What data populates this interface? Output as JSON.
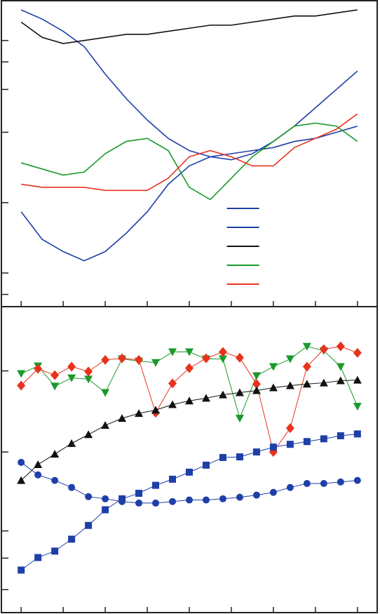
{
  "chart_data": [
    {
      "type": "line",
      "legend": "lower right",
      "xlim": [
        -0.47,
        8.47
      ],
      "xticks": [
        0,
        1,
        2,
        3,
        4,
        5,
        6,
        7,
        8
      ],
      "ylim": [
        0,
        100
      ],
      "yticks": [
        87,
        80,
        71,
        57,
        34,
        11,
        4
      ],
      "x": [
        0,
        0.5,
        1,
        1.5,
        2,
        2.5,
        3,
        3.5,
        4,
        4.5,
        5,
        5.5,
        6,
        6.5,
        7,
        7.5,
        8
      ],
      "series": [
        {
          "color": "#1f3fa8",
          "values": [
            97,
            94,
            90,
            85,
            76,
            68,
            61,
            55,
            51,
            49,
            48,
            50,
            54,
            59,
            65,
            71,
            77
          ]
        },
        {
          "color": "#1f3fa8",
          "values": [
            31,
            22,
            18,
            15,
            18,
            24,
            31,
            40,
            46,
            49,
            50,
            51,
            52,
            54,
            55,
            57,
            59
          ]
        },
        {
          "color": "#111111",
          "values": [
            93,
            88,
            86,
            87,
            88,
            89,
            89,
            90,
            91,
            92,
            92,
            93,
            94,
            95,
            95,
            96,
            97
          ]
        },
        {
          "color": "#1a9a2a",
          "values": [
            47,
            45,
            43,
            44,
            50,
            54,
            55,
            51,
            39,
            35,
            42,
            49,
            54,
            59,
            60,
            59,
            54
          ]
        },
        {
          "color": "#e8321e",
          "values": [
            40,
            39,
            39,
            39,
            38,
            38,
            38,
            42,
            49,
            51,
            49,
            46,
            46,
            52,
            55,
            58,
            63
          ]
        }
      ]
    },
    {
      "type": "line",
      "xlim": [
        -0.47,
        8.47
      ],
      "xticks": [
        0,
        1,
        2,
        3,
        4,
        5,
        6,
        7,
        8
      ],
      "ylim": [
        0,
        100
      ],
      "yticks": [
        79,
        52.5,
        26.7,
        17.8,
        7.5
      ],
      "x": [
        0,
        0.4,
        0.8,
        1.2,
        1.6,
        2,
        2.4,
        2.8,
        3.2,
        3.6,
        4,
        4.4,
        4.8,
        5.2,
        5.6,
        6,
        6.4,
        6.8,
        7.2,
        7.6,
        8
      ],
      "series": [
        {
          "color": "#1a9a2a",
          "marker": "triangle-down",
          "values": [
            78.1,
            80.6,
            74.0,
            76.7,
            76.3,
            71.9,
            82.9,
            82.2,
            81.7,
            85.2,
            85.2,
            82.9,
            82.9,
            63.5,
            77.4,
            80.4,
            82.9,
            87.0,
            85.6,
            80.4,
            67.4
          ]
        },
        {
          "color": "#e8321e",
          "marker": "diamond",
          "values": [
            74.2,
            79.7,
            77.6,
            80.4,
            78.8,
            82.6,
            83.1,
            82.6,
            65.3,
            74.9,
            79.9,
            83.1,
            85.2,
            83.3,
            74.7,
            52.5,
            60.3,
            80.4,
            86.1,
            87.0,
            84.9
          ]
        },
        {
          "color": "#111111",
          "marker": "triangle-up",
          "values": [
            43.2,
            48.4,
            51.8,
            55.3,
            58.2,
            61.2,
            63.5,
            65.1,
            66.2,
            68.0,
            69.2,
            70.1,
            71.2,
            71.9,
            72.6,
            73.5,
            74.2,
            74.7,
            75.1,
            75.8,
            76.0
          ]
        },
        {
          "color": "#1f3fa8",
          "marker": "circle",
          "values": [
            49.1,
            45.0,
            43.2,
            40.9,
            37.9,
            37.2,
            36.3,
            35.8,
            35.8,
            36.3,
            36.8,
            36.8,
            37.2,
            37.7,
            38.4,
            39.3,
            40.9,
            42.2,
            42.2,
            42.7,
            43.2
          ]
        },
        {
          "color": "#1f3fa8",
          "marker": "square",
          "values": [
            13.9,
            18.0,
            20.1,
            24.0,
            28.5,
            33.6,
            37.2,
            39.0,
            41.6,
            43.6,
            45.9,
            48.2,
            50.7,
            50.9,
            52.5,
            54.1,
            55.0,
            55.9,
            56.8,
            57.8,
            58.4
          ]
        }
      ]
    }
  ]
}
